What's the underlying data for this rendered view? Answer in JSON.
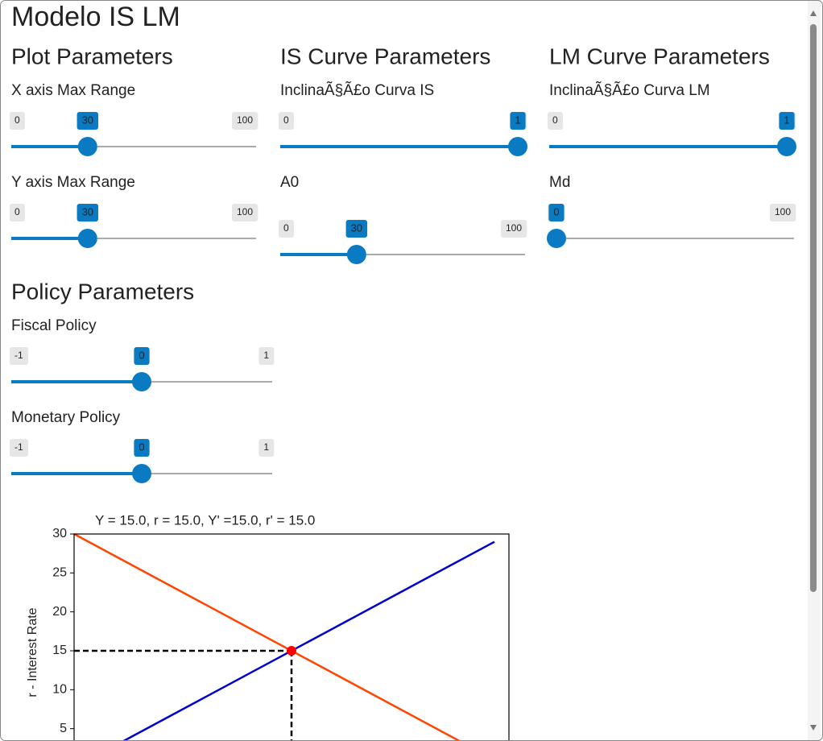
{
  "title": "Modelo IS LM",
  "sections": [
    {
      "heading": "Plot Parameters",
      "sliders": [
        {
          "label": "X axis Max Range",
          "min": 0,
          "max": 100,
          "value": 30
        },
        {
          "label": "Y axis Max Range",
          "min": 0,
          "max": 100,
          "value": 30
        }
      ]
    },
    {
      "heading": "IS Curve Parameters",
      "sliders": [
        {
          "label": "InclinaÃ§Ã£o Curva IS",
          "min": 0,
          "max": 1,
          "value": 1
        },
        {
          "label": "A0",
          "min": 0,
          "max": 100,
          "value": 30
        }
      ]
    },
    {
      "heading": "LM Curve Parameters",
      "sliders": [
        {
          "label": "InclinaÃ§Ã£o Curva LM",
          "min": 0,
          "max": 1,
          "value": 1
        },
        {
          "label": "Md",
          "min": 0,
          "max": 100,
          "value": 0
        }
      ]
    },
    {
      "heading": "Policy Parameters",
      "sliders": [
        {
          "label": "Fiscal Policy",
          "min": -1,
          "max": 1,
          "value": 0
        },
        {
          "label": "Monetary Policy",
          "min": -1,
          "max": 1,
          "value": 0
        }
      ]
    }
  ],
  "plot": {
    "title": "Y = 15.0, r = 15.0, Y' =15.0, r' = 15.0",
    "y_label": "r - Interest Rate",
    "xlim": [
      0,
      30
    ],
    "ylim": [
      0,
      30
    ],
    "yticks": [
      5,
      10,
      15,
      20,
      25,
      30
    ],
    "is_curve": {
      "color": "#ff4500",
      "x": [
        0,
        29
      ],
      "y": [
        30,
        1
      ]
    },
    "lm_curve": {
      "color": "#0000cc",
      "x": [
        0,
        29
      ],
      "y": [
        0,
        29
      ]
    },
    "equilibrium": {
      "color": "#ff0000",
      "x": 15,
      "y": 15
    }
  }
}
